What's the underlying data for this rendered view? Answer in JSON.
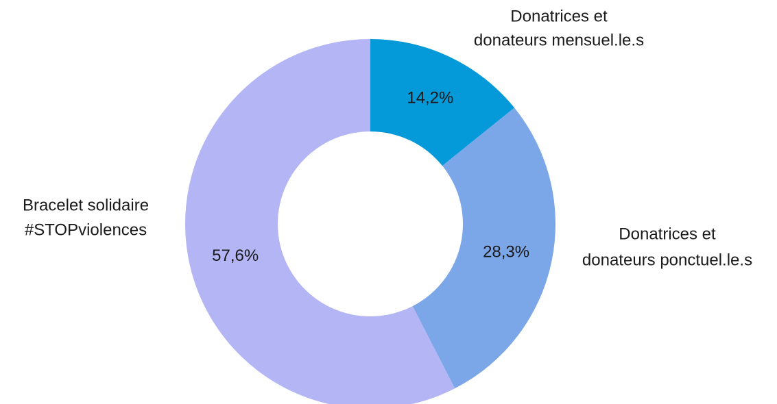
{
  "chart_data": {
    "type": "donut",
    "categories": [
      [
        "Donatrices et",
        "donateurs mensuel.le.s"
      ],
      [
        "Donatrices et",
        "donateurs ponctuel.le.s"
      ],
      [
        "Bracelet solidaire",
        "#STOPviolences"
      ]
    ],
    "values": [
      14.2,
      28.3,
      57.6
    ],
    "value_labels": [
      "14,2%",
      "28,3%",
      "57,6%"
    ],
    "colors": [
      "#0499d8",
      "#7ba7e9",
      "#b3b5f4"
    ]
  }
}
